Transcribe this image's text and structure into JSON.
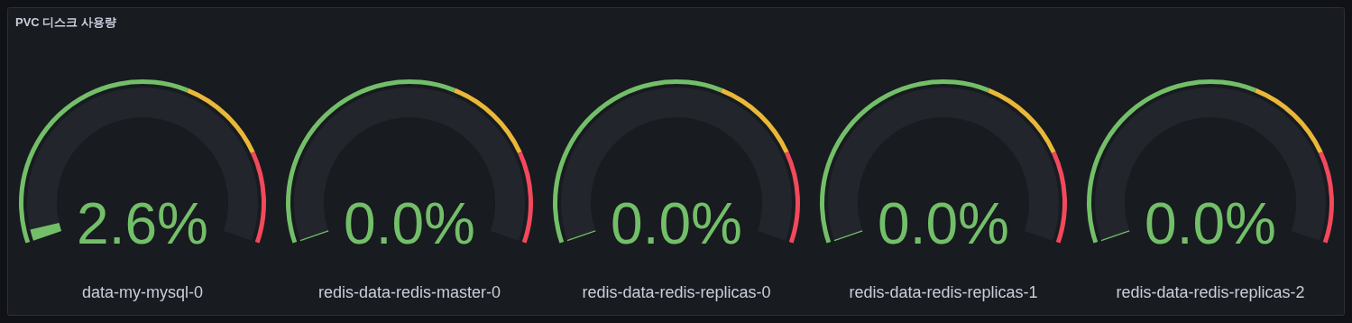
{
  "chart_data": {
    "type": "other",
    "title": "PVC 디스크 사용량",
    "categories": [
      "data-my-mysql-0",
      "redis-data-redis-master-0",
      "redis-data-redis-replicas-0",
      "redis-data-redis-replicas-1",
      "redis-data-redis-replicas-2"
    ],
    "values": [
      2.6,
      0.0,
      0.0,
      0.0,
      0.0
    ],
    "value_labels": [
      "2.6%",
      "0.0%",
      "0.0%",
      "0.0%",
      "0.0%"
    ],
    "color": "#73bf69"
  }
}
